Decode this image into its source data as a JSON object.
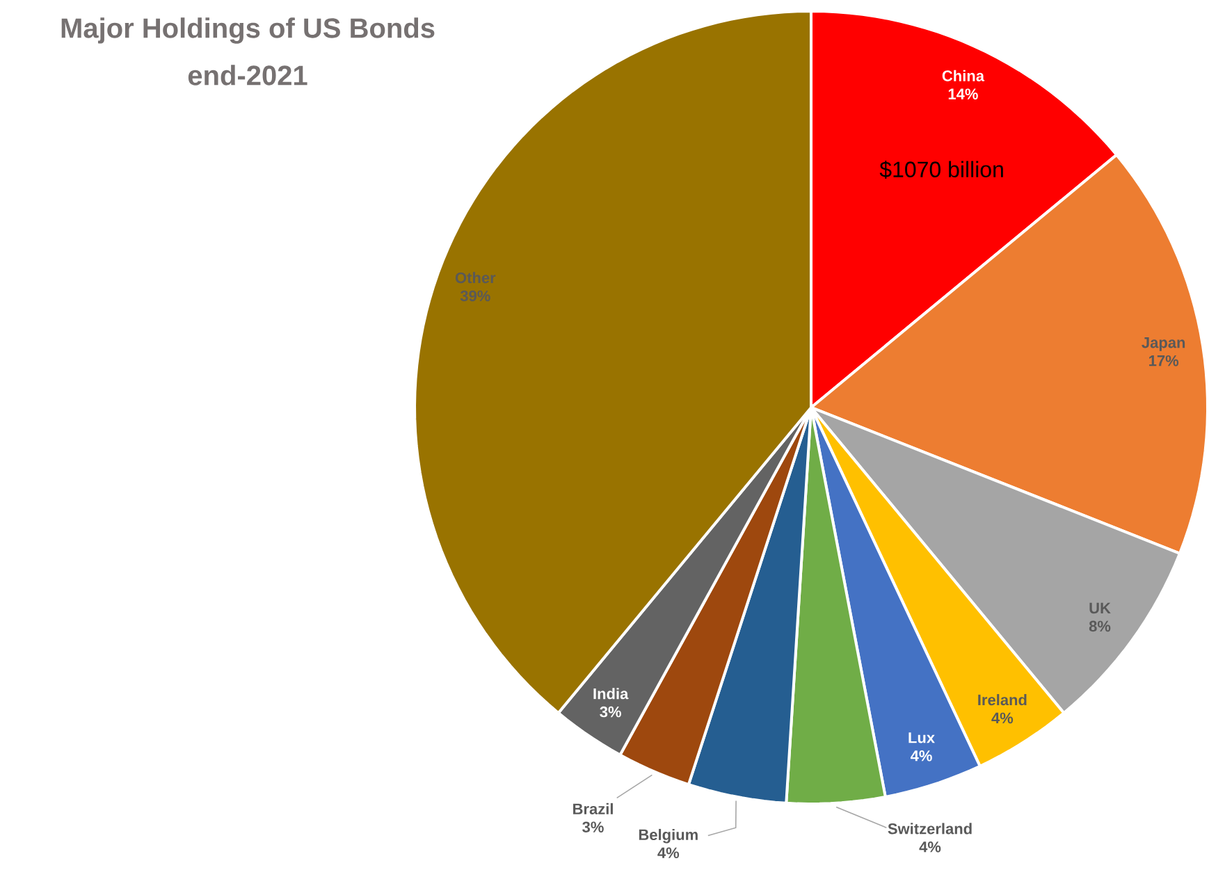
{
  "chart_data": {
    "type": "pie",
    "title": "Major Holdings of US Bonds",
    "subtitle": "end-2021",
    "categories": [
      "China",
      "Japan",
      "UK",
      "Ireland",
      "Lux",
      "Switzerland",
      "Belgium",
      "Brazil",
      "India",
      "Other"
    ],
    "values": [
      14,
      17,
      8,
      4,
      4,
      4,
      4,
      3,
      3,
      39
    ],
    "value_labels": [
      "14%",
      "17%",
      "8%",
      "4%",
      "4%",
      "4%",
      "4%",
      "3%",
      "3%",
      "39%"
    ],
    "colors": [
      "#ff0000",
      "#ed7d31",
      "#a5a5a5",
      "#ffc000",
      "#4472c4",
      "#70ad47",
      "#255e91",
      "#9e480e",
      "#636363",
      "#997300"
    ],
    "annotations": [
      "$1070 billion"
    ]
  }
}
